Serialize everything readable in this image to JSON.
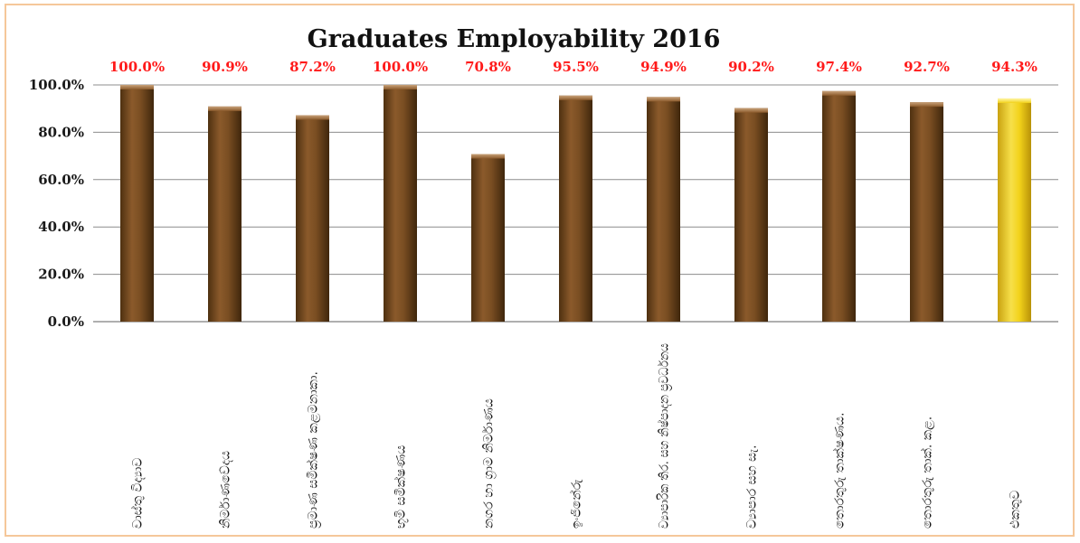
{
  "chart_data": {
    "type": "bar",
    "title": "Graduates Employability 2016",
    "xlabel": "",
    "ylabel": "",
    "ylim": [
      0,
      100
    ],
    "yticks": [
      "0.0%",
      "20.0%",
      "40.0%",
      "60.0%",
      "80.0%",
      "100.0%"
    ],
    "grid": true,
    "categories": [
      "වාස්තු විද්‍යාව",
      "නිර්මාණවේදය",
      "ප්‍රමාණ සමීක්ෂණ කළමනාකා.",
      "භූමි සමීක්ෂණය",
      "නගර හා ග්‍රාම නිර්මාණය",
      "ඉංජිනේරු",
      "ව්‍යාපාරික තිර. සහ නිෂ්පාදන ප්‍රවර්ධනය",
      "ව්‍යාපාර සහ සැ.",
      "තොරතුරු තාක්ෂණය.",
      "තොරතුරු තාක්. කළ.",
      "එකතුව"
    ],
    "values": [
      100.0,
      90.9,
      87.2,
      100.0,
      70.8,
      95.5,
      94.9,
      90.2,
      97.4,
      92.7,
      94.3
    ],
    "data_labels": [
      "100.0%",
      "90.9%",
      "87.2%",
      "100.0%",
      "70.8%",
      "95.5%",
      "94.9%",
      "90.2%",
      "97.4%",
      "92.7%",
      "94.3%"
    ],
    "bar_color": "#7a4e22",
    "highlight_color": "#f2d21a",
    "highlight_index": 10,
    "label_color": "#ff1a1a"
  }
}
